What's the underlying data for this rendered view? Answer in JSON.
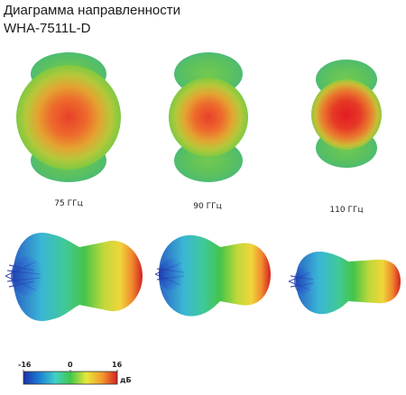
{
  "header": {
    "title": "Диаграмма направленности",
    "model": "WHA-7511L-D"
  },
  "patterns": [
    {
      "frequency_label": "75 ГГц"
    },
    {
      "frequency_label": "90 ГГц"
    },
    {
      "frequency_label": "110 ГГц"
    }
  ],
  "colorbar": {
    "min_label": "-16",
    "mid_label": "0",
    "max_label": "16",
    "unit": "дБ",
    "colors": [
      "#1a2fa8",
      "#1e7fd6",
      "#3fd0c8",
      "#40c84a",
      "#e8e83a",
      "#f29a2e",
      "#d62020"
    ]
  }
}
